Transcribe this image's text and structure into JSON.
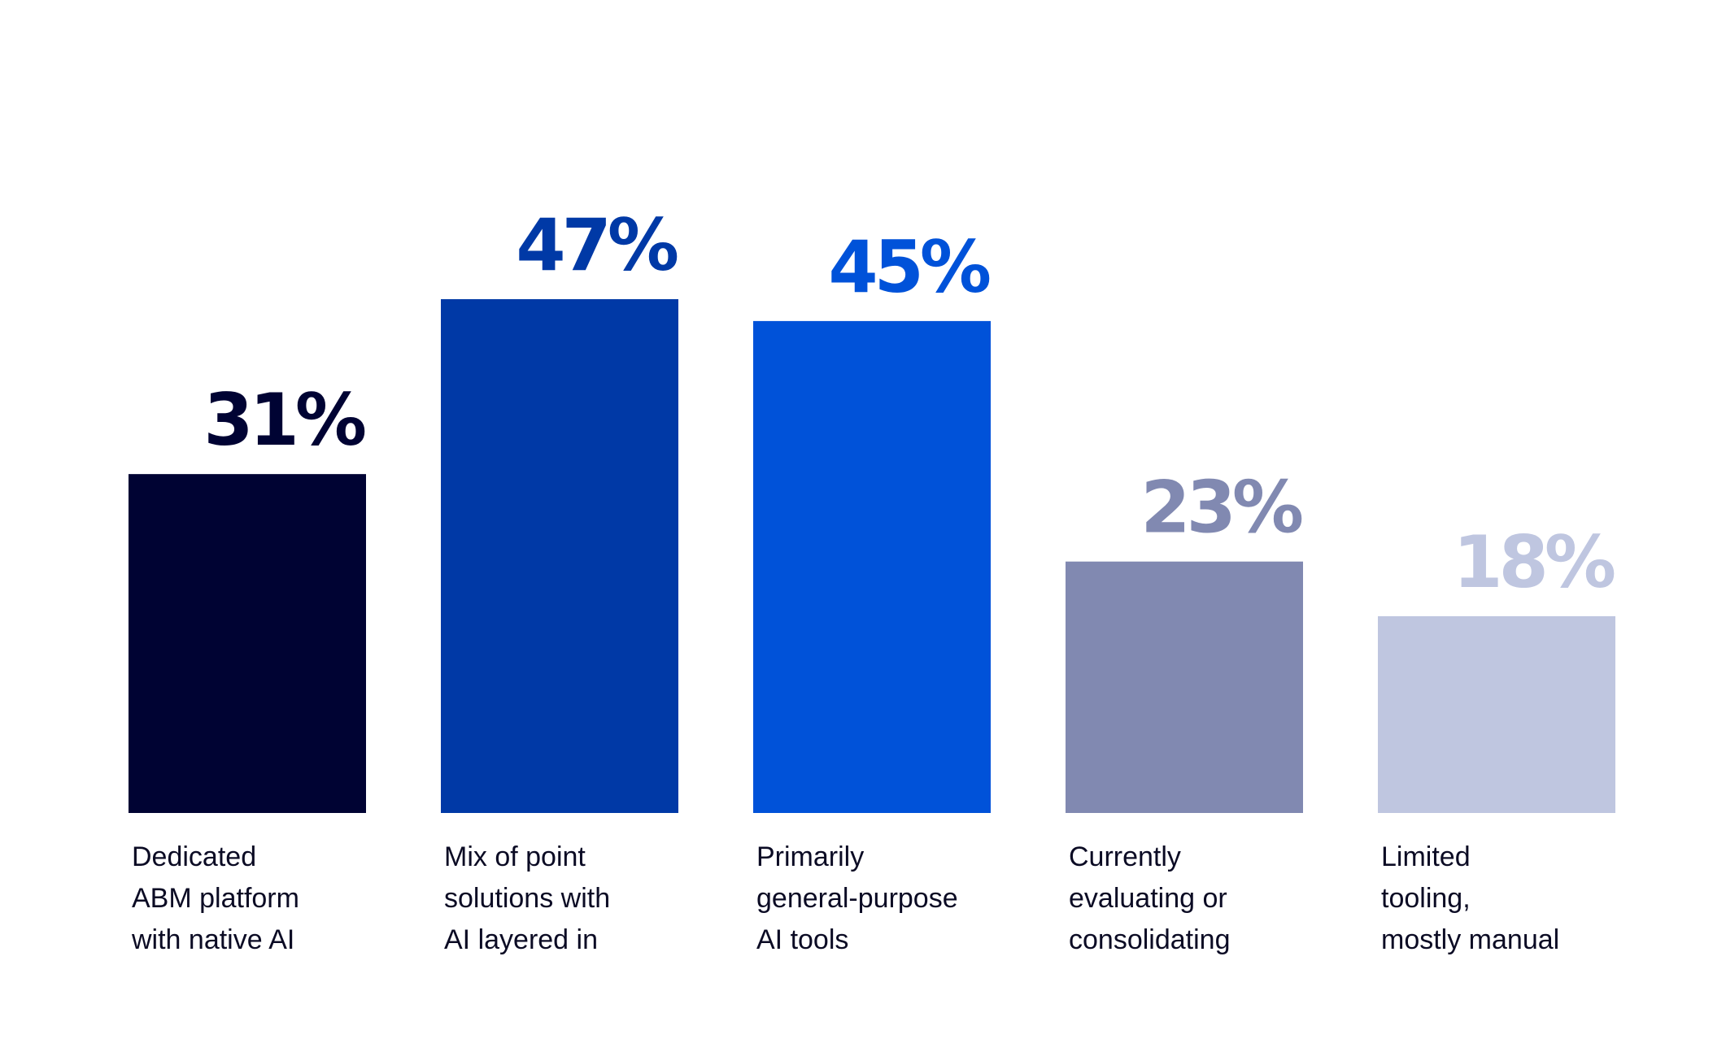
{
  "chart_data": {
    "type": "bar",
    "title": "",
    "xlabel": "",
    "ylabel": "",
    "ylim": [
      0,
      47
    ],
    "grid": false,
    "legend": "none",
    "categories": [
      [
        "Dedicated",
        "ABM platform",
        "with native AI"
      ],
      [
        "Mix of point",
        "solutions with",
        "AI layered in"
      ],
      [
        "Primarily",
        "general-purpose",
        "AI tools"
      ],
      [
        "Currently",
        "evaluating or",
        "consolidating"
      ],
      [
        "Limited",
        "tooling,",
        "mostly manual"
      ]
    ],
    "values": [
      31,
      47,
      45,
      23,
      18
    ],
    "value_labels": [
      "31%",
      "47%",
      "45%",
      "23%",
      "18%"
    ],
    "colors": [
      "#000333",
      "#0039a6",
      "#0052d9",
      "#8189b1",
      "#bfc6e0"
    ]
  }
}
